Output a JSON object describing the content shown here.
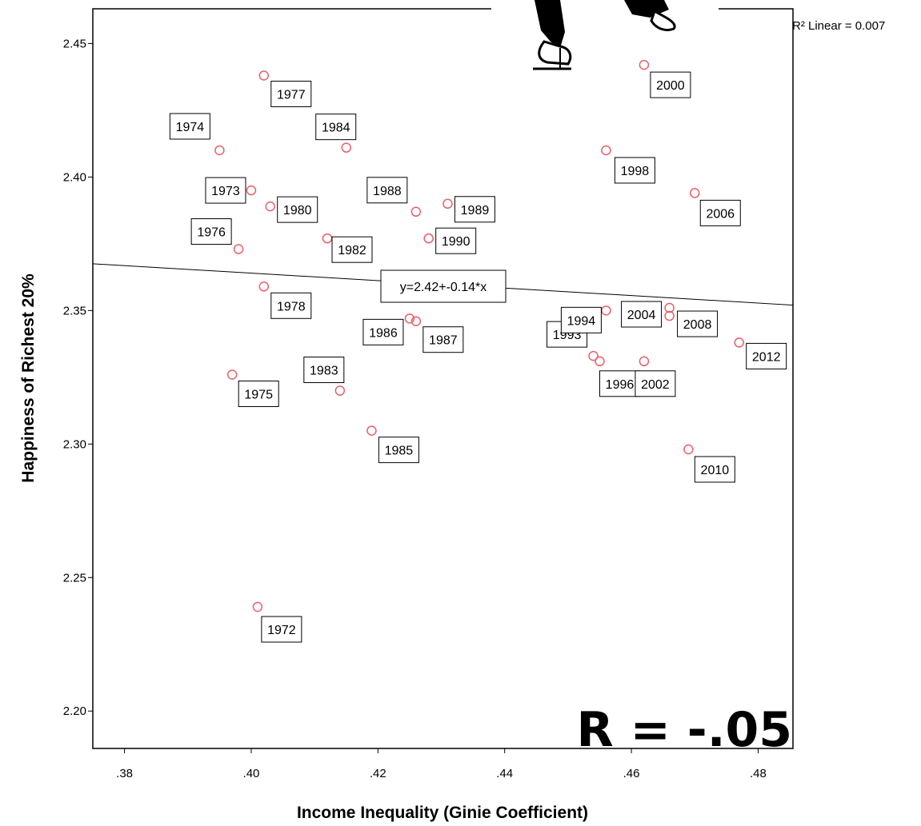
{
  "chart_data": {
    "type": "scatter",
    "title": "",
    "xlabel": "Income Inequality (Ginie Coefficient)",
    "ylabel": "Happiness of Richest 20%",
    "xlim": [
      0.375,
      0.4855
    ],
    "ylim": [
      2.186,
      2.463
    ],
    "x_ticks": [
      0.38,
      0.4,
      0.42,
      0.44,
      0.46,
      0.48
    ],
    "x_tick_labels": [
      ".38",
      ".40",
      ".42",
      ".44",
      ".46",
      ".48"
    ],
    "y_ticks": [
      2.2,
      2.25,
      2.3,
      2.35,
      2.4,
      2.45
    ],
    "y_tick_labels": [
      "2.20",
      "2.25",
      "2.30",
      "2.35",
      "2.40",
      "2.45"
    ],
    "grid": false,
    "marker_color": "#e8606a",
    "fit_line": {
      "equation_label": "y=2.42+-0.14*x",
      "r2_label": "R² Linear = 0.007",
      "intercept": 2.42,
      "slope": -0.14
    },
    "annotation": "R = -.05",
    "points": [
      {
        "year": "1972",
        "x": 0.401,
        "y": 2.239
      },
      {
        "year": "1973",
        "x": 0.4,
        "y": 2.395
      },
      {
        "year": "1974",
        "x": 0.395,
        "y": 2.41
      },
      {
        "year": "1975",
        "x": 0.397,
        "y": 2.326
      },
      {
        "year": "1976",
        "x": 0.398,
        "y": 2.373
      },
      {
        "year": "1977",
        "x": 0.402,
        "y": 2.438
      },
      {
        "year": "1978",
        "x": 0.402,
        "y": 2.359
      },
      {
        "year": "1980",
        "x": 0.403,
        "y": 2.389
      },
      {
        "year": "1982",
        "x": 0.412,
        "y": 2.377
      },
      {
        "year": "1983",
        "x": 0.414,
        "y": 2.32
      },
      {
        "year": "1984",
        "x": 0.415,
        "y": 2.411
      },
      {
        "year": "1985",
        "x": 0.419,
        "y": 2.305
      },
      {
        "year": "1986",
        "x": 0.425,
        "y": 2.347
      },
      {
        "year": "1987",
        "x": 0.426,
        "y": 2.346
      },
      {
        "year": "1988",
        "x": 0.426,
        "y": 2.387
      },
      {
        "year": "1989",
        "x": 0.431,
        "y": 2.39
      },
      {
        "year": "1990",
        "x": 0.428,
        "y": 2.377
      },
      {
        "year": "1993",
        "x": 0.454,
        "y": 2.333
      },
      {
        "year": "1994",
        "x": 0.456,
        "y": 2.35
      },
      {
        "year": "1996",
        "x": 0.455,
        "y": 2.331
      },
      {
        "year": "1998",
        "x": 0.456,
        "y": 2.41
      },
      {
        "year": "2000",
        "x": 0.462,
        "y": 2.442
      },
      {
        "year": "2002",
        "x": 0.462,
        "y": 2.331
      },
      {
        "year": "2004",
        "x": 0.466,
        "y": 2.351
      },
      {
        "year": "2006",
        "x": 0.47,
        "y": 2.394
      },
      {
        "year": "2008",
        "x": 0.466,
        "y": 2.348
      },
      {
        "year": "2010",
        "x": 0.469,
        "y": 2.298
      },
      {
        "year": "2012",
        "x": 0.477,
        "y": 2.338
      }
    ]
  }
}
